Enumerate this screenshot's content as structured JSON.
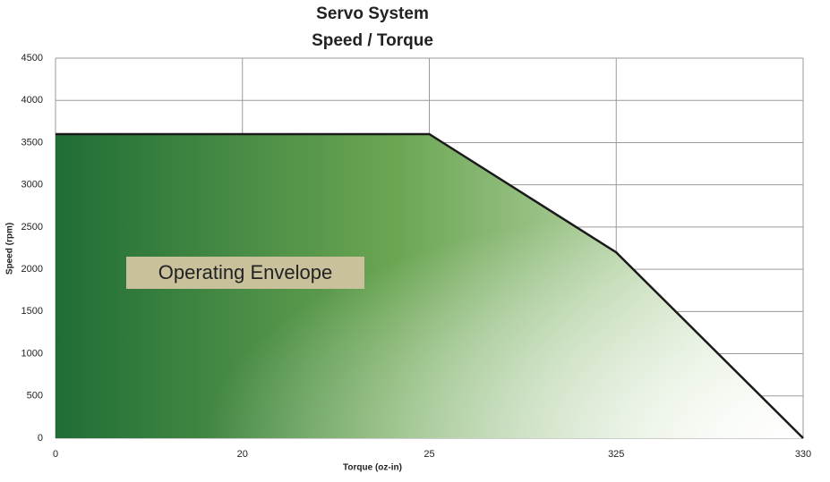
{
  "chart_data": {
    "type": "area",
    "title": [
      "Servo System",
      "Speed / Torque"
    ],
    "x_label": "Torque (oz-in)",
    "y_label": "Speed (rpm)",
    "annotation": "Operating Envelope",
    "categories": [
      "0",
      "20",
      "25",
      "325",
      "330"
    ],
    "values": [
      3600,
      3600,
      3600,
      2200,
      0
    ],
    "color": "#1f6d35",
    "ylim": [
      0,
      4500
    ],
    "yticks": [
      0,
      500,
      1000,
      1500,
      2000,
      2500,
      3000,
      3500,
      4000,
      4500
    ],
    "grid": true
  }
}
